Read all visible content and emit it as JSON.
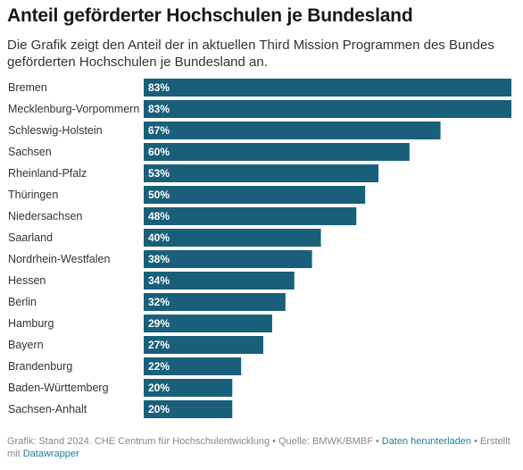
{
  "title": "Anteil geförderter Hochschulen je Bundesland",
  "subtitle": "Die Grafik zeigt den Anteil der in aktuellen Third Mission Programmen des Bundes geförderten Hochschulen je Bundesland an.",
  "footer": {
    "text": "Grafik: Stand 2024. CHE Centrum für Hochschulentwicklung • Quelle: BMWK/BMBF • ",
    "download_link": "Daten herunterladen",
    "sep": " • Erstellt mit ",
    "datawrapper_link": "Datawrapper"
  },
  "colors": {
    "bar": "#1a5f7a",
    "bar_label": "#ffffff",
    "category_label": "#333333"
  },
  "chart_data": {
    "type": "bar",
    "orientation": "horizontal",
    "categories": [
      "Bremen",
      "Mecklenburg-Vorpommern",
      "Schleswig-Holstein",
      "Sachsen",
      "Rheinland-Pfalz",
      "Thüringen",
      "Niedersachsen",
      "Saarland",
      "Nordrhein-Westfalen",
      "Hessen",
      "Berlin",
      "Hamburg",
      "Bayern",
      "Brandenburg",
      "Baden-Württemberg",
      "Sachsen-Anhalt"
    ],
    "values": [
      83,
      83,
      67,
      60,
      53,
      50,
      48,
      40,
      38,
      34,
      32,
      29,
      27,
      22,
      20,
      20
    ],
    "value_labels": [
      "83%",
      "83%",
      "67%",
      "60%",
      "53%",
      "50%",
      "48%",
      "40%",
      "38%",
      "34%",
      "32%",
      "29%",
      "27%",
      "22%",
      "20%",
      "20%"
    ],
    "unit": "%",
    "xlim": [
      0,
      83
    ],
    "grid": false,
    "legend": "none"
  }
}
